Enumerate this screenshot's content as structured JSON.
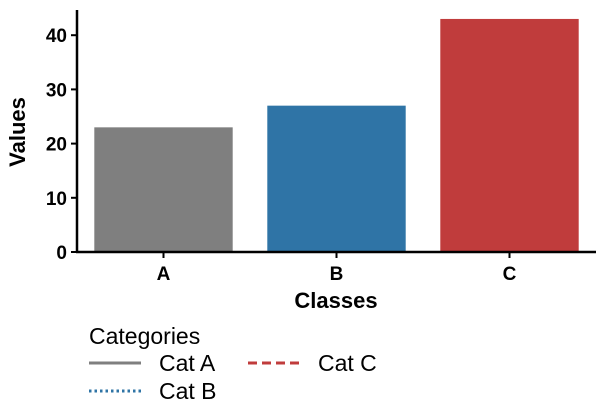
{
  "chart_data": {
    "type": "bar",
    "categories": [
      "A",
      "B",
      "C"
    ],
    "values": [
      23,
      27,
      43
    ],
    "bar_colors": [
      "#7f7f7f",
      "#2f74a6",
      "#c03c3c"
    ],
    "title": "",
    "xlabel": "Classes",
    "ylabel": "Values",
    "ylim": [
      0,
      45
    ],
    "yticks": [
      0,
      10,
      20,
      30,
      40
    ],
    "grid": false,
    "legend": {
      "title": "Categories",
      "placement": "below-left",
      "entries": [
        {
          "label": "Cat A",
          "color": "#7f7f7f",
          "style": "solid"
        },
        {
          "label": "Cat B",
          "color": "#2f74a6",
          "style": "dotted"
        },
        {
          "label": "Cat C",
          "color": "#c03c3c",
          "style": "dashed"
        }
      ]
    }
  }
}
